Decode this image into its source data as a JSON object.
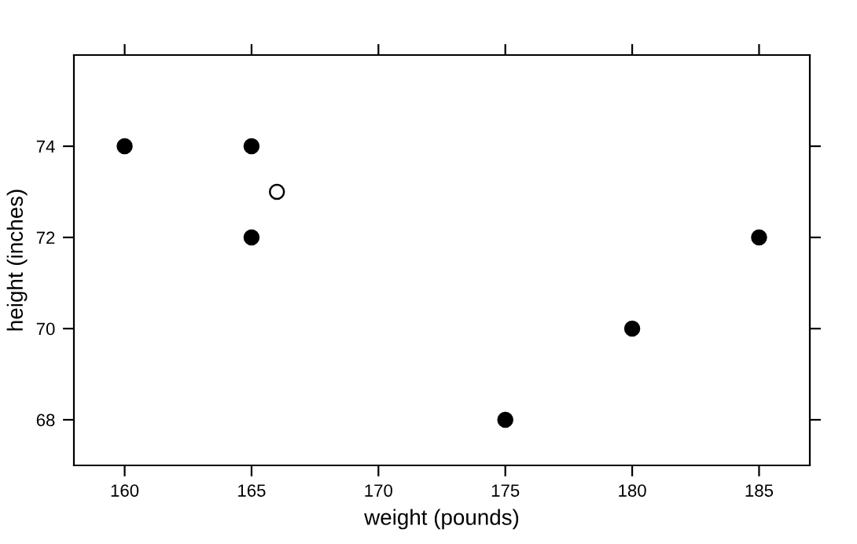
{
  "chart_data": {
    "type": "scatter",
    "xlabel": "weight (pounds)",
    "ylabel": "height (inches)",
    "series": [
      {
        "color": "#000000",
        "x": [
          160,
          165,
          165,
          175,
          180,
          185
        ],
        "values": [
          74,
          74,
          72,
          68,
          70,
          72
        ]
      },
      {
        "color": "#ffffff",
        "x": [
          166
        ],
        "values": [
          73
        ]
      }
    ],
    "xlim": [
      158,
      187
    ],
    "ylim": [
      67,
      76
    ],
    "xticks": [
      160,
      165,
      170,
      175,
      180,
      185
    ],
    "yticks": [
      68,
      70,
      72,
      74
    ],
    "grid": false,
    "marker": "circle"
  }
}
